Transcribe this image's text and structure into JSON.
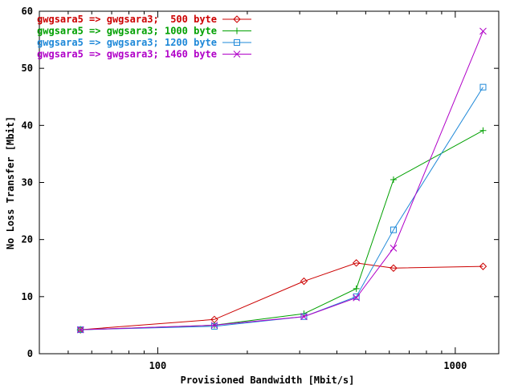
{
  "chart_data": {
    "type": "line",
    "title": "",
    "xlabel": "Provisioned Bandwidth [Mbit/s]",
    "ylabel": "No Loss Transfer [Mbit]",
    "xscale": "log",
    "xlim": [
      40,
      1400
    ],
    "ylim": [
      0,
      60
    ],
    "xticks": [
      100,
      1000
    ],
    "yticks": [
      0,
      10,
      20,
      30,
      40,
      50,
      60
    ],
    "grid": false,
    "legend_position": "top-left",
    "series": [
      {
        "name": "gwgsara5 => gwgsara3;  500 byte",
        "color": "#cc0000",
        "marker": "diamond",
        "x": [
          55,
          155,
          310,
          465,
          620,
          1240
        ],
        "y": [
          4.2,
          6.0,
          12.7,
          15.9,
          15.0,
          15.3
        ]
      },
      {
        "name": "gwgsara5 => gwgsara3; 1000 byte",
        "color": "#00a000",
        "marker": "plus",
        "x": [
          55,
          155,
          310,
          465,
          620,
          1240
        ],
        "y": [
          4.2,
          5.0,
          7.0,
          11.4,
          30.5,
          39.1
        ]
      },
      {
        "name": "gwgsara5 => gwgsara3; 1200 byte",
        "color": "#1e88d8",
        "marker": "square",
        "x": [
          55,
          155,
          310,
          465,
          620,
          1240
        ],
        "y": [
          4.2,
          4.8,
          6.5,
          10.0,
          21.7,
          46.7
        ]
      },
      {
        "name": "gwgsara5 => gwgsara3; 1460 byte",
        "color": "#b000c8",
        "marker": "cross",
        "x": [
          55,
          155,
          310,
          465,
          620,
          1240
        ],
        "y": [
          4.2,
          5.0,
          6.5,
          9.8,
          18.5,
          56.5
        ]
      }
    ]
  }
}
